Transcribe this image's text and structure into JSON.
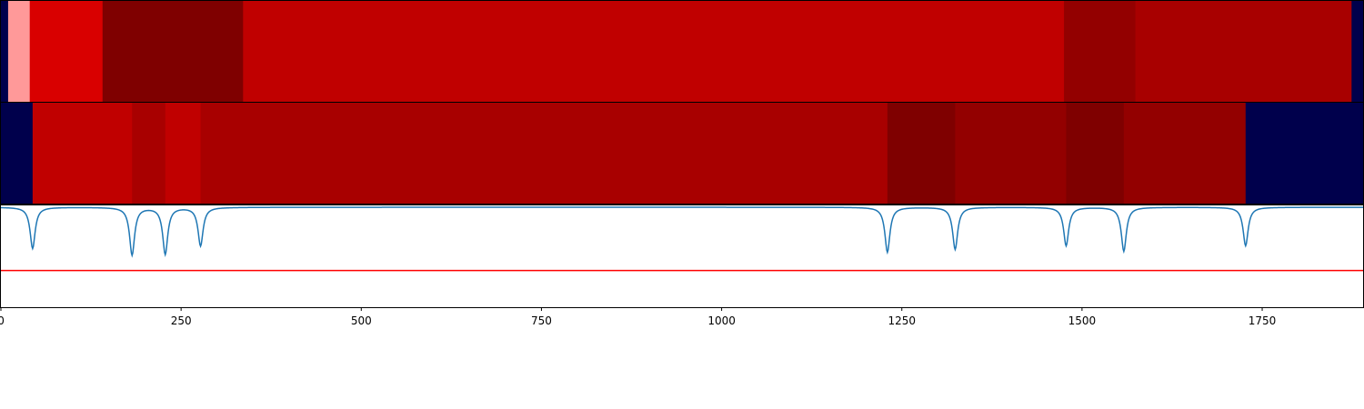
{
  "chart_data": {
    "type": "heatmap",
    "xlim": [
      0,
      1890
    ],
    "x_ticks": [
      0,
      250,
      500,
      750,
      1000,
      1250,
      1500,
      1750
    ],
    "x_tick_labels": [
      "0",
      "250",
      "500",
      "750",
      "1000",
      "1250",
      "1500",
      "1750"
    ],
    "colormap": "seismic",
    "panels": [
      {
        "type": "heatmap",
        "segments": [
          {
            "start": 0,
            "end": 10,
            "color": "#00004c"
          },
          {
            "start": 10,
            "end": 40,
            "color": "#ff9999"
          },
          {
            "start": 40,
            "end": 141,
            "color": "#d90000"
          },
          {
            "start": 141,
            "end": 336,
            "color": "#7f0000"
          },
          {
            "start": 336,
            "end": 1475,
            "color": "#c00000"
          },
          {
            "start": 1475,
            "end": 1574,
            "color": "#930000"
          },
          {
            "start": 1574,
            "end": 1874,
            "color": "#a80000"
          },
          {
            "start": 1874,
            "end": 1890,
            "color": "#00004c"
          }
        ]
      },
      {
        "type": "heatmap",
        "segments": [
          {
            "start": 0,
            "end": 44,
            "color": "#00004c"
          },
          {
            "start": 44,
            "end": 182,
            "color": "#c00000"
          },
          {
            "start": 182,
            "end": 228,
            "color": "#a80000"
          },
          {
            "start": 228,
            "end": 277,
            "color": "#c00000"
          },
          {
            "start": 277,
            "end": 1230,
            "color": "#a80000"
          },
          {
            "start": 1230,
            "end": 1324,
            "color": "#7f0000"
          },
          {
            "start": 1324,
            "end": 1478,
            "color": "#930000"
          },
          {
            "start": 1478,
            "end": 1558,
            "color": "#7f0000"
          },
          {
            "start": 1558,
            "end": 1727,
            "color": "#930000"
          },
          {
            "start": 1727,
            "end": 1890,
            "color": "#00004c"
          }
        ]
      },
      {
        "type": "line",
        "ylim": [
          -1.1,
          0.02
        ],
        "line_color": "#1f77b4",
        "threshold": -0.7,
        "threshold_color": "#ff0000",
        "baseline": -0.01,
        "dips": [
          {
            "x": 44,
            "depth": -0.46
          },
          {
            "x": 182,
            "depth": -0.53
          },
          {
            "x": 228,
            "depth": -0.52
          },
          {
            "x": 277,
            "depth": -0.43
          },
          {
            "x": 1230,
            "depth": -0.5
          },
          {
            "x": 1324,
            "depth": -0.47
          },
          {
            "x": 1478,
            "depth": -0.43
          },
          {
            "x": 1558,
            "depth": -0.49
          },
          {
            "x": 1727,
            "depth": -0.43
          }
        ]
      }
    ]
  }
}
